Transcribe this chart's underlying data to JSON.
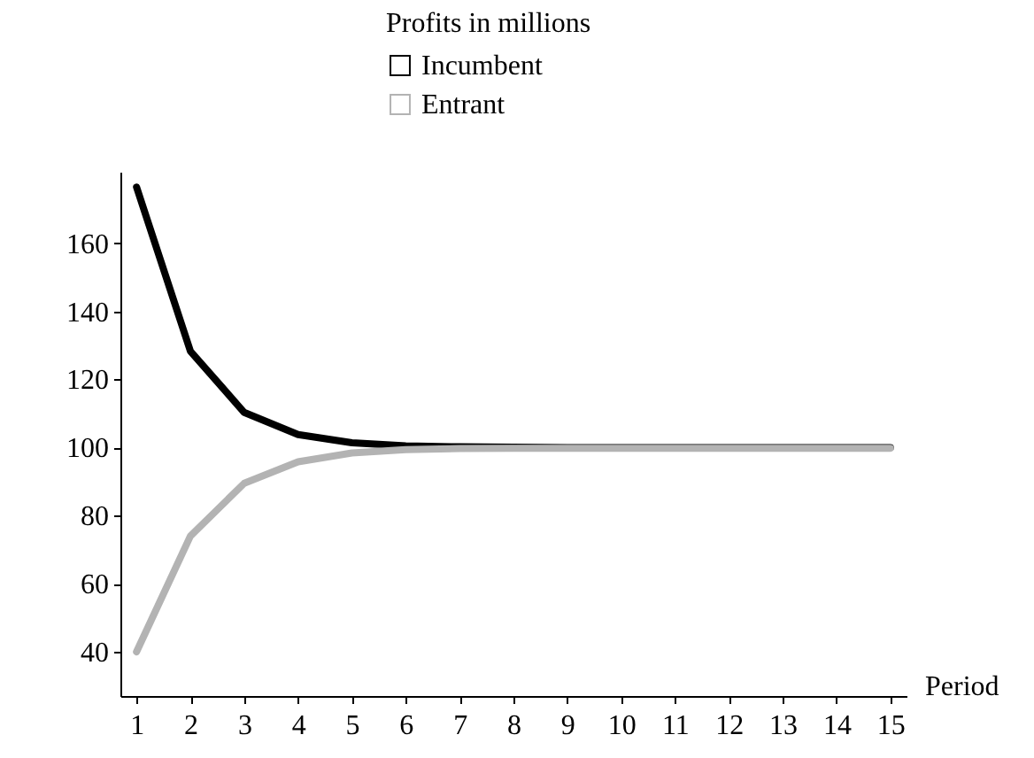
{
  "chart_data": {
    "type": "line",
    "legend_title": "Profits in millions",
    "xlabel": "Period",
    "x": [
      1,
      2,
      3,
      4,
      5,
      6,
      7,
      8,
      9,
      10,
      11,
      12,
      13,
      14,
      15
    ],
    "series": [
      {
        "name": "Incumbent",
        "color": "#000000",
        "values": [
          176.5,
          128.3,
          110.3,
          103.8,
          101.4,
          100.5,
          100.2,
          100.1,
          100,
          100,
          100,
          100,
          100,
          100,
          100
        ]
      },
      {
        "name": "Entrant",
        "color": "#b3b3b3",
        "values": [
          40,
          74,
          89.5,
          95.8,
          98.4,
          99.4,
          99.7,
          99.8,
          99.8,
          99.8,
          99.8,
          99.8,
          99.8,
          99.8,
          99.8
        ]
      }
    ],
    "xlim": [
      0.7,
      15.3
    ],
    "xticks": [
      1,
      2,
      3,
      4,
      5,
      6,
      7,
      8,
      9,
      10,
      11,
      12,
      13,
      14,
      15
    ],
    "ylim": [
      27,
      181
    ],
    "yticks": [
      40,
      60,
      80,
      100,
      120,
      140,
      160
    ],
    "grid": false,
    "legend": "top",
    "marker": "none",
    "line_style": "solid"
  }
}
